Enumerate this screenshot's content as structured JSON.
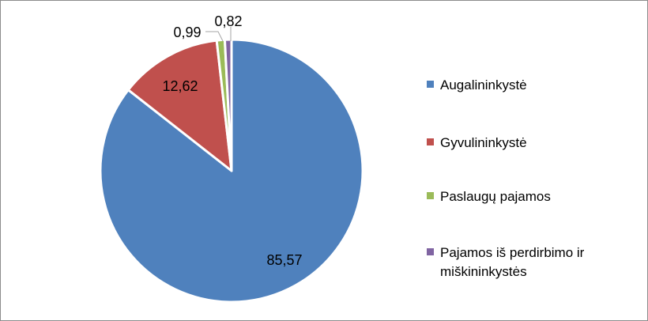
{
  "chart_data": {
    "type": "pie",
    "categories": [
      "Augalininkystė",
      "Gyvulininkystė",
      "Paslaugų pajamos",
      "Pajamos iš perdirbimo ir miškininkystės"
    ],
    "values": [
      85.57,
      12.62,
      0.99,
      0.82
    ],
    "value_labels": [
      "85,57",
      "12,62",
      "0,99",
      "0,82"
    ],
    "colors": [
      "#4f81bd",
      "#c0504d",
      "#9bbb59",
      "#8064a2"
    ],
    "legend_position": "right"
  }
}
